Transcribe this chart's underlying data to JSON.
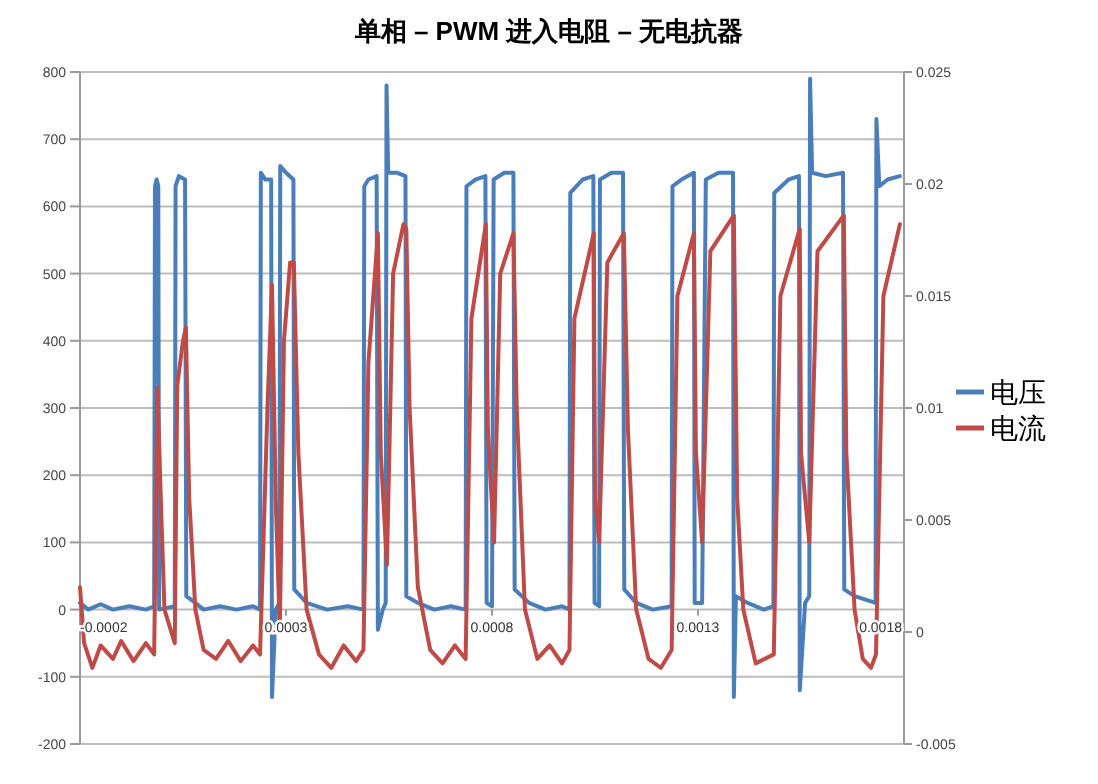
{
  "chart_data": {
    "type": "line",
    "title": "单相 – PWM 进入电阻 – 无电抗器",
    "xlim": [
      -0.0002,
      0.0018
    ],
    "xticks": [
      -0.0002,
      0.0003,
      0.0008,
      0.0013,
      0.0018
    ],
    "ylim": [
      -200,
      800
    ],
    "yticks": [
      -200,
      -100,
      0,
      100,
      200,
      300,
      400,
      500,
      600,
      700,
      800
    ],
    "y2lim": [
      -0.005,
      0.025
    ],
    "y2ticks": [
      -0.005,
      0,
      0.005,
      0.01,
      0.015,
      0.02,
      0.025
    ],
    "grid": "y",
    "legend": "right",
    "marker": "none",
    "line_style": "solid",
    "series": [
      {
        "name": "电压",
        "color": "#4a7ebb",
        "x": [
          -0.0002,
          -0.00018,
          -0.00015,
          -0.00012,
          -8e-05,
          -4e-05,
          -2e-05,
          -1.8e-05,
          -1.4e-05,
          -1e-05,
          -8e-06,
          3e-05,
          3.2e-05,
          4e-05,
          5.5e-05,
          5.8e-05,
          8e-05,
          0.0001,
          0.00014,
          0.00018,
          0.00022,
          0.000237,
          0.000239,
          0.00025,
          0.000264,
          0.000266,
          0.000275,
          0.000284,
          0.000286,
          0.0003,
          0.000318,
          0.00032,
          0.00035,
          0.0004,
          0.00045,
          0.000488,
          0.00049,
          0.0005,
          0.00052,
          0.000523,
          0.000535,
          0.000542,
          0.000544,
          0.000548,
          0.00057,
          0.00059,
          0.000592,
          0.00062,
          0.00066,
          0.0007,
          0.000736,
          0.000738,
          0.00076,
          0.000784,
          0.000787,
          0.0008,
          0.000804,
          0.00083,
          0.000852,
          0.000855,
          0.00089,
          0.00093,
          0.00097,
          0.000988,
          0.00099,
          0.00102,
          0.001046,
          0.001049,
          0.00106,
          0.001062,
          0.00109,
          0.001118,
          0.001121,
          0.00115,
          0.00119,
          0.001236,
          0.001238,
          0.00126,
          0.00129,
          0.001292,
          0.00131,
          0.001319,
          0.00135,
          0.001385,
          0.001387,
          0.001392,
          0.00142,
          0.00146,
          0.001483,
          0.001485,
          0.00152,
          0.001545,
          0.001547,
          0.00156,
          0.00157,
          0.001572,
          0.001577,
          0.00161,
          0.001652,
          0.001655,
          0.00168,
          0.001731,
          0.001733,
          0.00174,
          0.00176,
          0.00179
        ],
        "values": [
          10,
          0,
          8,
          0,
          5,
          0,
          5,
          630,
          640,
          630,
          0,
          5,
          630,
          645,
          640,
          20,
          10,
          0,
          5,
          0,
          5,
          0,
          650,
          640,
          640,
          -130,
          0,
          10,
          660,
          650,
          640,
          30,
          10,
          0,
          5,
          0,
          630,
          640,
          645,
          -30,
          0,
          10,
          780,
          650,
          650,
          645,
          20,
          10,
          0,
          5,
          0,
          630,
          640,
          645,
          10,
          5,
          640,
          650,
          650,
          30,
          10,
          0,
          5,
          0,
          620,
          640,
          645,
          10,
          5,
          640,
          650,
          650,
          30,
          10,
          0,
          5,
          630,
          640,
          650,
          10,
          10,
          640,
          650,
          650,
          -130,
          20,
          10,
          0,
          5,
          620,
          640,
          645,
          -120,
          10,
          20,
          790,
          650,
          645,
          650,
          30,
          20,
          10,
          730,
          630,
          640,
          645
        ]
      },
      {
        "name": "电流",
        "color": "#be4b48",
        "axis": "y2",
        "x": [
          -0.0002,
          -0.00019,
          -0.00017,
          -0.00015,
          -0.00012,
          -0.0001,
          -7e-05,
          -4e-05,
          -2e-05,
          -1.2e-05,
          -4e-06,
          5e-06,
          3e-05,
          3.6e-05,
          5e-05,
          5.7e-05,
          6.5e-05,
          8e-05,
          0.0001,
          0.00013,
          0.00016,
          0.00019,
          0.00022,
          0.000237,
          0.000255,
          0.000266,
          0.000275,
          0.000285,
          0.000295,
          0.00031,
          0.000319,
          0.00033,
          0.00035,
          0.00038,
          0.00041,
          0.00044,
          0.00047,
          0.000488,
          0.0005,
          0.000523,
          0.00053,
          0.000545,
          0.00056,
          0.000585,
          0.000592,
          0.0006,
          0.00062,
          0.00065,
          0.00068,
          0.00071,
          0.000736,
          0.00075,
          0.000785,
          0.00079,
          0.000805,
          0.00082,
          0.000852,
          0.00086,
          0.00088,
          0.00091,
          0.00094,
          0.00097,
          0.000988,
          0.001,
          0.001047,
          0.00105,
          0.00106,
          0.00108,
          0.00112,
          0.00113,
          0.00115,
          0.00118,
          0.00121,
          0.001236,
          0.00125,
          0.00129,
          0.001295,
          0.00131,
          0.00133,
          0.001387,
          0.001395,
          0.00141,
          0.00144,
          0.001484,
          0.0015,
          0.001547,
          0.00155,
          0.00157,
          0.00159,
          0.001654,
          0.00166,
          0.00168,
          0.0017,
          0.00172,
          0.001732,
          0.00175,
          0.00179
        ],
        "values": [
          0.002,
          -0.0005,
          -0.0016,
          -0.0006,
          -0.0012,
          -0.0004,
          -0.0013,
          -0.0005,
          -0.001,
          0.0109,
          0.006,
          0.001,
          -0.0005,
          0.011,
          0.013,
          0.0136,
          0.006,
          0.001,
          -0.0008,
          -0.0012,
          -0.0004,
          -0.0013,
          -0.0006,
          -0.001,
          0.01,
          0.0155,
          0.006,
          0,
          0.013,
          0.0165,
          0.0165,
          0.008,
          0.001,
          -0.001,
          -0.0016,
          -0.0006,
          -0.0013,
          -0.0008,
          0.012,
          0.0178,
          0.008,
          0.003,
          0.016,
          0.0182,
          0.018,
          0.01,
          0.002,
          -0.0008,
          -0.0014,
          -0.0006,
          -0.0012,
          0.014,
          0.0182,
          0.009,
          0.004,
          0.016,
          0.0178,
          0.01,
          0.001,
          -0.0012,
          -0.0006,
          -0.0014,
          -0.0008,
          0.014,
          0.0178,
          0.006,
          0.004,
          0.0165,
          0.0178,
          0.009,
          0.001,
          -0.0012,
          -0.0016,
          -0.0008,
          0.015,
          0.0178,
          0.008,
          0.004,
          0.017,
          0.0186,
          0.006,
          0.001,
          -0.0014,
          -0.001,
          0.015,
          0.018,
          0.008,
          0.004,
          0.017,
          0.0186,
          0.008,
          0.001,
          -0.0012,
          -0.0016,
          -0.001,
          0.015,
          0.0182
        ]
      }
    ]
  }
}
